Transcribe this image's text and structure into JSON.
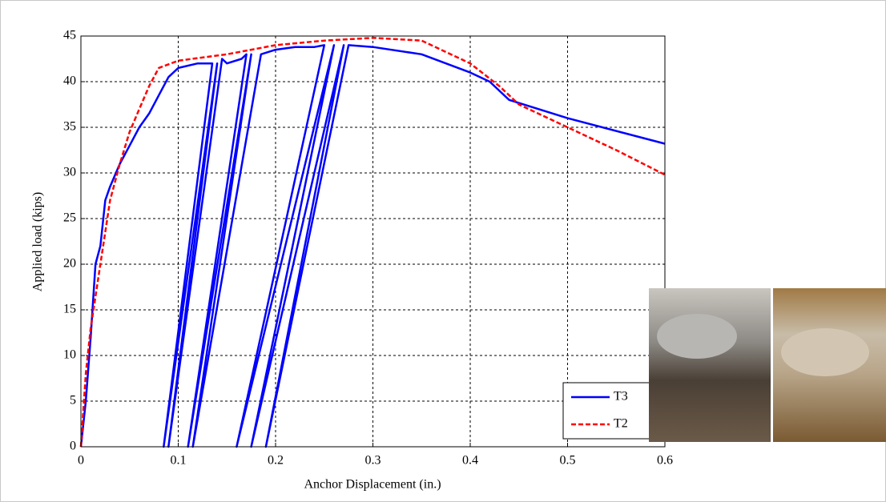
{
  "chart_data": {
    "type": "line",
    "xlabel": "Anchor Displacement (in.)",
    "ylabel": "Applied load (kips)",
    "xlim": [
      0,
      0.6
    ],
    "xticks": [
      0,
      0.1,
      0.2,
      0.3,
      0.4,
      0.5,
      0.6
    ],
    "ylim": [
      0,
      45
    ],
    "yticks": [
      0,
      5,
      10,
      15,
      20,
      25,
      30,
      35,
      40,
      45
    ],
    "grid": true,
    "legend": "lower right",
    "series": [
      {
        "name": "T3",
        "color": "#0000ff",
        "dash": "solid",
        "x": [
          0,
          0.005,
          0.01,
          0.015,
          0.02,
          0.025,
          0.03,
          0.04,
          0.05,
          0.06,
          0.07,
          0.08,
          0.09,
          0.1,
          0.12,
          0.135,
          0.085,
          0.14,
          0.09,
          0.145,
          0.15,
          0.165,
          0.17,
          0.11,
          0.175,
          0.115,
          0.185,
          0.2,
          0.22,
          0.24,
          0.25,
          0.16,
          0.26,
          0.175,
          0.27,
          0.19,
          0.275,
          0.3,
          0.35,
          0.4,
          0.42,
          0.44,
          0.5,
          0.6
        ],
        "values": [
          0,
          5,
          12,
          20,
          22,
          27,
          28.5,
          31,
          33,
          35,
          36.5,
          38.5,
          40.5,
          41.5,
          42,
          42,
          0,
          42,
          0,
          42.5,
          42,
          42.5,
          43,
          0,
          43,
          0,
          43,
          43.5,
          43.8,
          43.8,
          44,
          0,
          44,
          0,
          44,
          0,
          44,
          43.8,
          43,
          41,
          40,
          38,
          36,
          33.2
        ]
      },
      {
        "name": "T2",
        "color": "#ff0000",
        "dash": "dashed",
        "x": [
          0,
          0.005,
          0.01,
          0.02,
          0.03,
          0.04,
          0.05,
          0.06,
          0.07,
          0.08,
          0.1,
          0.15,
          0.2,
          0.25,
          0.3,
          0.35,
          0.4,
          0.43,
          0.45,
          0.5,
          0.55,
          0.6
        ],
        "values": [
          0,
          8,
          13,
          20,
          27,
          31,
          34.5,
          37,
          39.5,
          41.5,
          42.3,
          43,
          44,
          44.5,
          44.8,
          44.5,
          42,
          39.5,
          37.5,
          35,
          32.5,
          29.8
        ]
      }
    ]
  }
}
